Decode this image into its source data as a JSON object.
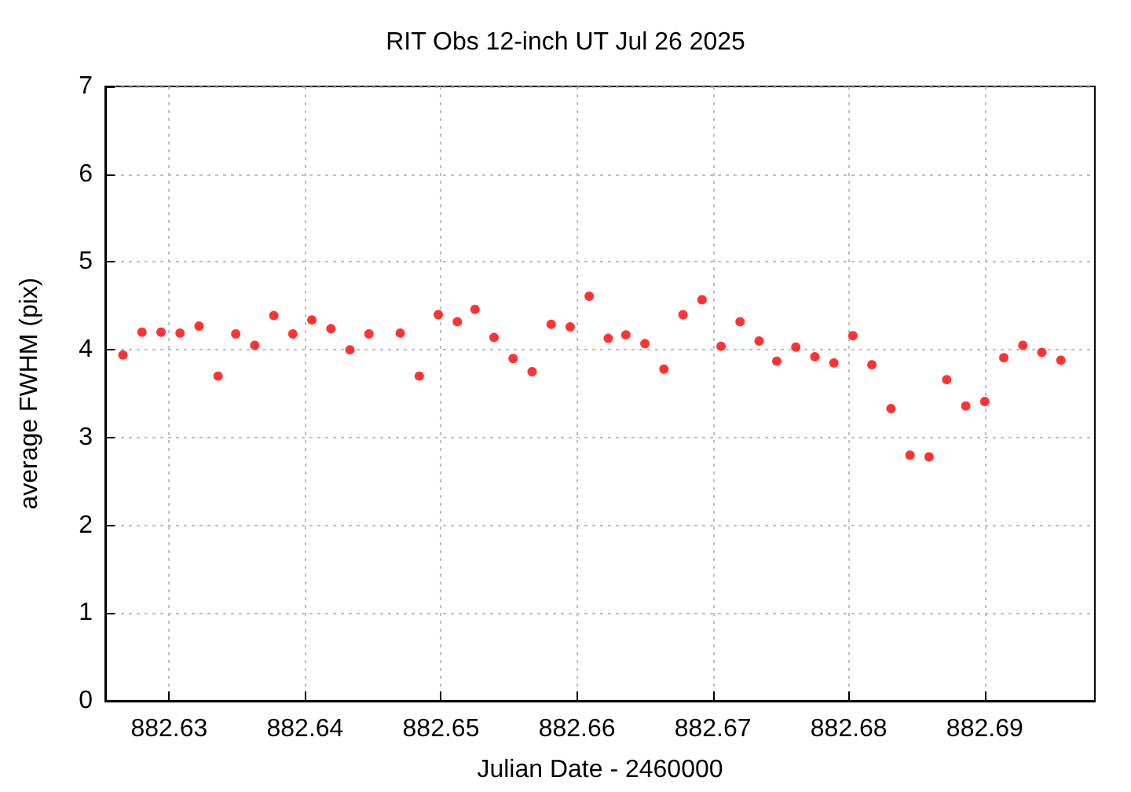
{
  "chart_data": {
    "type": "scatter",
    "title": "RIT Obs 12-inch UT Jul 26 2025",
    "xlabel": "Julian Date - 2460000",
    "ylabel": "average FWHM (pix)",
    "x": [
      882.6266,
      882.628,
      882.6294,
      882.6308,
      882.6322,
      882.6336,
      882.6349,
      882.6363,
      882.6377,
      882.6391,
      882.6405,
      882.6419,
      882.6433,
      882.6447,
      882.647,
      882.6484,
      882.6498,
      882.6512,
      882.6525,
      882.6539,
      882.6553,
      882.6567,
      882.6581,
      882.6595,
      882.6609,
      882.6623,
      882.6636,
      882.665,
      882.6664,
      882.6678,
      882.6692,
      882.6706,
      882.672,
      882.6734,
      882.6747,
      882.6761,
      882.6775,
      882.6789,
      882.6803,
      882.6817,
      882.6831,
      882.6845,
      882.6859,
      882.6872,
      882.6886,
      882.69,
      882.6914,
      882.6928,
      882.6942,
      882.6956
    ],
    "series": [
      {
        "color": "#ff0000",
        "values": [
          3.94,
          4.2,
          4.2,
          4.19,
          4.27,
          3.7,
          4.18,
          4.05,
          4.39,
          4.18,
          4.34,
          4.24,
          4.0,
          4.18,
          4.19,
          3.7,
          4.4,
          4.32,
          4.46,
          4.14,
          3.9,
          3.75,
          4.29,
          4.26,
          4.61,
          4.13,
          4.17,
          4.07,
          3.78,
          4.4,
          4.57,
          4.04,
          4.32,
          4.1,
          3.87,
          4.03,
          3.92,
          3.85,
          4.16,
          3.83,
          3.33,
          2.8,
          2.78,
          3.66,
          3.36,
          3.41,
          3.91,
          4.05,
          3.97,
          3.88
        ]
      }
    ],
    "xlim": [
      882.6253,
      882.6981
    ],
    "xticks": [
      882.63,
      882.64,
      882.65,
      882.66,
      882.67,
      882.68,
      882.69
    ],
    "ylim": [
      0,
      7
    ],
    "yticks": [
      0,
      1,
      2,
      3,
      4,
      5,
      6,
      7
    ],
    "grid": true,
    "marker": "circle"
  }
}
